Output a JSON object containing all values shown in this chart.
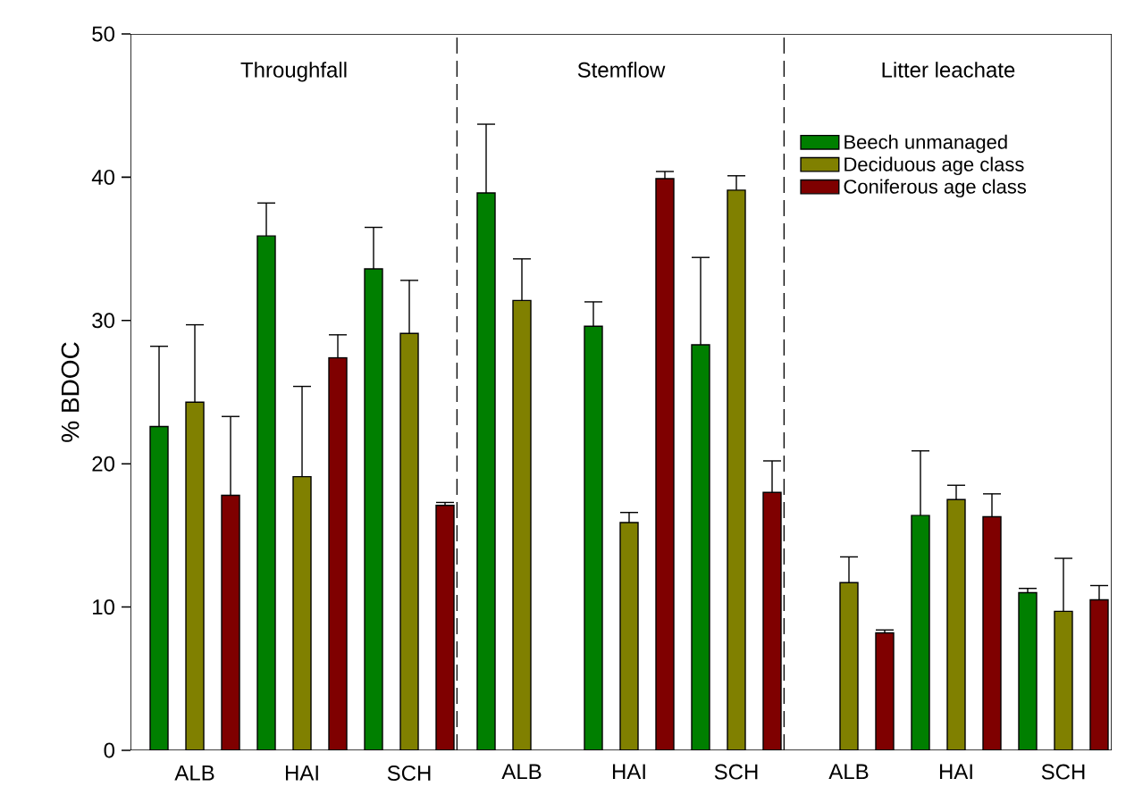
{
  "chart_data": [
    {
      "type": "bar",
      "title": "Throughfall",
      "ylabel": "% BDOC",
      "categories": [
        "ALB",
        "HAI",
        "SCH"
      ],
      "ylim": [
        0,
        50
      ],
      "yticks": [
        0,
        10,
        20,
        30,
        40,
        50
      ],
      "series": [
        {
          "color": "#007f00",
          "values": [
            22.6,
            35.9,
            33.6
          ],
          "errors": [
            5.6,
            2.3,
            2.9
          ]
        },
        {
          "color": "#808000",
          "values": [
            24.3,
            19.1,
            29.1
          ],
          "errors": [
            5.4,
            6.3,
            3.7
          ]
        },
        {
          "color": "#7f0000",
          "values": [
            17.8,
            27.4,
            17.1
          ],
          "errors": [
            5.5,
            1.6,
            0.2
          ]
        }
      ]
    },
    {
      "type": "bar",
      "title": "Stemflow",
      "categories": [
        "ALB",
        "HAI",
        "SCH"
      ],
      "ylim": [
        0,
        50
      ],
      "yticks": [
        0,
        10,
        20,
        30,
        40,
        50
      ],
      "tick_labels": "x",
      "series": [
        {
          "color": "#007f00",
          "values": [
            38.9,
            29.6,
            28.3
          ],
          "errors": [
            4.8,
            1.7,
            6.1
          ]
        },
        {
          "color": "#808000",
          "values": [
            31.4,
            15.9,
            39.1
          ],
          "errors": [
            2.9,
            0.7,
            1.0
          ]
        },
        {
          "color": "#7f0000",
          "values": [
            null,
            39.9,
            18.0
          ],
          "errors": [
            null,
            0.5,
            2.2
          ]
        }
      ]
    },
    {
      "type": "bar",
      "title": "Litter leachate",
      "categories": [
        "ALB",
        "HAI",
        "SCH"
      ],
      "ylim": [
        0,
        50
      ],
      "yticks": [
        0,
        10,
        20,
        30,
        40,
        50
      ],
      "tick_labels": "x",
      "legend": "top left",
      "series": [
        {
          "name": "Beech unmanaged",
          "color": "#007f00",
          "values": [
            null,
            16.4,
            11.0
          ],
          "errors": [
            null,
            4.5,
            0.3
          ]
        },
        {
          "name": "Deciduous age class",
          "color": "#808000",
          "values": [
            11.7,
            17.5,
            9.7
          ],
          "errors": [
            1.8,
            1.0,
            3.7
          ]
        },
        {
          "name": "Coniferous age class",
          "color": "#7f0000",
          "values": [
            8.2,
            16.3,
            10.5
          ],
          "errors": [
            0.2,
            1.6,
            1.0
          ]
        }
      ]
    }
  ]
}
